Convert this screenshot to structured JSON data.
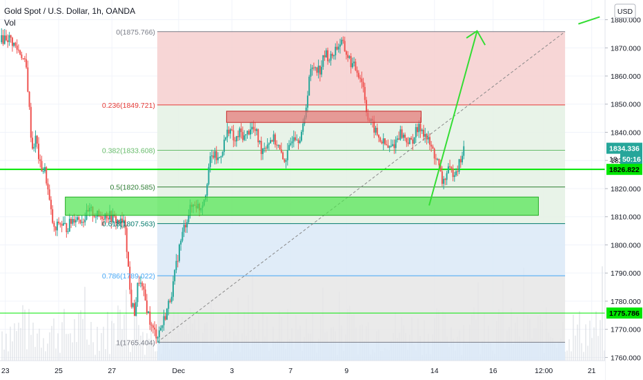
{
  "header": {
    "title": "Gold Spot / U.S. Dollar, 1h, OANDA",
    "volume_label": "Vol"
  },
  "currency_button": "USD",
  "countdown": "50:16",
  "colors": {
    "up": "#26a69a",
    "down": "#ef5350",
    "fib_top_zone": "#f6cfcf",
    "fib_green_zone": "#e4f1e4",
    "fib_blue_zone": "#dbe9f7",
    "fib_gray_zone": "#e6e6e6",
    "green_line": "#00e600",
    "red_box": "#e57373",
    "arrow": "#33dd33"
  },
  "chart_data": {
    "type": "candlestick",
    "instrument": "Gold Spot / U.S. Dollar",
    "timeframe": "1h",
    "y_axis": {
      "min": 1752,
      "max": 1887,
      "ticks": [
        "1760.000",
        "1770.000",
        "1780.000",
        "1790.000",
        "1800.000",
        "1810.000",
        "1820.000",
        "1830.000",
        "1840.000",
        "1850.000",
        "1860.000",
        "1870.000",
        "1880.000"
      ]
    },
    "x_axis": {
      "ticks": [
        {
          "label": "23",
          "x": 0.0
        },
        {
          "label": "25",
          "x": 2.0
        },
        {
          "label": "27",
          "x": 4.0
        },
        {
          "label": "Dec",
          "x": 6.5
        },
        {
          "label": "3",
          "x": 8.5
        },
        {
          "label": "7",
          "x": 10.7
        },
        {
          "label": "9",
          "x": 12.8
        },
        {
          "label": "14",
          "x": 16.1
        },
        {
          "label": "16",
          "x": 18.3
        },
        {
          "label": "12:00",
          "x": 20.2
        },
        {
          "label": "21",
          "x": 22.0
        }
      ],
      "range": [
        -0.2,
        22.5
      ]
    },
    "fib_retracement": {
      "start_x": 5.7,
      "end_x": 21.0,
      "start_price": 1765.404,
      "end_price": 1875.766,
      "levels": [
        {
          "label": "0(1875.766)",
          "price": 1875.766,
          "color": "#787b86"
        },
        {
          "label": "0.236(1849.721)",
          "price": 1849.721,
          "color": "#e53935"
        },
        {
          "label": "0.382(1833.608)",
          "price": 1833.608,
          "color": "#66bb6a"
        },
        {
          "label": "0.5(1820.585)",
          "price": 1820.585,
          "color": "#2e7d32"
        },
        {
          "label": "0.618(1807.563)",
          "price": 1807.563,
          "color": "#00796b"
        },
        {
          "label": "0.786(1789.022)",
          "price": 1789.022,
          "color": "#42a5f5"
        },
        {
          "label": "1(1765.404)",
          "price": 1765.404,
          "color": "#787b86"
        }
      ]
    },
    "horizontal_lines": [
      {
        "price": 1826.822,
        "label": "1826.822",
        "color": "#00e600",
        "width": 2
      },
      {
        "price": 1775.786,
        "label": "1775.786",
        "color": "#00e600",
        "width": 1
      }
    ],
    "price_labels": [
      {
        "price": 1834.336,
        "label": "1834.336",
        "color": "#26a69a"
      },
      {
        "price": 1830.5,
        "label": "50:16",
        "color": "#26a69a"
      },
      {
        "price": 1830.5,
        "label": "18",
        "color": "#000000"
      }
    ],
    "rectangles": [
      {
        "x1": 2.25,
        "x2": 20.0,
        "p_top": 1817.0,
        "p_bottom": 1810.5,
        "fill": "#4ee44e",
        "stroke": "#22aa22",
        "name": "support-zone"
      },
      {
        "x1": 8.3,
        "x2": 15.6,
        "p_top": 1847.5,
        "p_bottom": 1843.5,
        "fill": "#e57373",
        "stroke": "#c62828",
        "name": "resistance-zone"
      }
    ],
    "projection_arrow": {
      "points": [
        [
          15.9,
          1814
        ],
        [
          17.7,
          1876
        ]
      ],
      "head": [
        [
          17.3,
          1873.5
        ],
        [
          17.7,
          1876
        ],
        [
          18.0,
          1871
        ]
      ]
    },
    "off_axis_arrow": [
      [
        21.5,
        1878.5
      ],
      [
        22.3,
        1881
      ]
    ],
    "candles_close_path": [
      [
        -0.2,
        1872
      ],
      [
        0.0,
        1874
      ],
      [
        0.2,
        1873
      ],
      [
        0.4,
        1870
      ],
      [
        0.6,
        1868
      ],
      [
        0.8,
        1862
      ],
      [
        1.0,
        1834
      ],
      [
        1.15,
        1838
      ],
      [
        1.3,
        1828
      ],
      [
        1.5,
        1826
      ],
      [
        1.7,
        1812
      ],
      [
        1.85,
        1804
      ],
      [
        2.0,
        1808
      ],
      [
        2.3,
        1806
      ],
      [
        2.6,
        1810
      ],
      [
        2.9,
        1809
      ],
      [
        3.2,
        1812
      ],
      [
        3.5,
        1810
      ],
      [
        3.8,
        1811
      ],
      [
        4.1,
        1809
      ],
      [
        4.3,
        1808
      ],
      [
        4.5,
        1807
      ],
      [
        4.7,
        1780
      ],
      [
        4.85,
        1776
      ],
      [
        5.0,
        1788
      ],
      [
        5.2,
        1782
      ],
      [
        5.35,
        1776
      ],
      [
        5.5,
        1770
      ],
      [
        5.7,
        1768
      ],
      [
        5.9,
        1772
      ],
      [
        6.1,
        1778
      ],
      [
        6.3,
        1786
      ],
      [
        6.5,
        1798
      ],
      [
        6.7,
        1806
      ],
      [
        6.9,
        1812
      ],
      [
        7.1,
        1815
      ],
      [
        7.3,
        1813
      ],
      [
        7.5,
        1818
      ],
      [
        7.65,
        1829
      ],
      [
        7.8,
        1832
      ],
      [
        8.0,
        1830
      ],
      [
        8.2,
        1836
      ],
      [
        8.4,
        1842
      ],
      [
        8.6,
        1836
      ],
      [
        8.8,
        1840
      ],
      [
        9.0,
        1838
      ],
      [
        9.2,
        1842
      ],
      [
        9.4,
        1840
      ],
      [
        9.6,
        1834
      ],
      [
        9.8,
        1836
      ],
      [
        10.0,
        1838
      ],
      [
        10.2,
        1836
      ],
      [
        10.4,
        1830
      ],
      [
        10.6,
        1832
      ],
      [
        10.8,
        1840
      ],
      [
        11.0,
        1838
      ],
      [
        11.2,
        1842
      ],
      [
        11.4,
        1860
      ],
      [
        11.6,
        1864
      ],
      [
        11.8,
        1862
      ],
      [
        12.0,
        1868
      ],
      [
        12.2,
        1866
      ],
      [
        12.4,
        1870
      ],
      [
        12.6,
        1872
      ],
      [
        12.8,
        1868
      ],
      [
        13.0,
        1864
      ],
      [
        13.2,
        1862
      ],
      [
        13.4,
        1858
      ],
      [
        13.6,
        1845
      ],
      [
        13.8,
        1842
      ],
      [
        14.0,
        1838
      ],
      [
        14.2,
        1836
      ],
      [
        14.4,
        1834
      ],
      [
        14.6,
        1836
      ],
      [
        14.8,
        1840
      ],
      [
        15.0,
        1838
      ],
      [
        15.2,
        1836
      ],
      [
        15.4,
        1840
      ],
      [
        15.6,
        1842
      ],
      [
        15.8,
        1838
      ],
      [
        16.0,
        1834
      ],
      [
        16.2,
        1830
      ],
      [
        16.4,
        1822
      ],
      [
        16.6,
        1826
      ],
      [
        16.8,
        1826
      ],
      [
        17.0,
        1828
      ],
      [
        17.2,
        1834
      ]
    ],
    "volume_note": "faint gray volume bars along the bottom"
  }
}
